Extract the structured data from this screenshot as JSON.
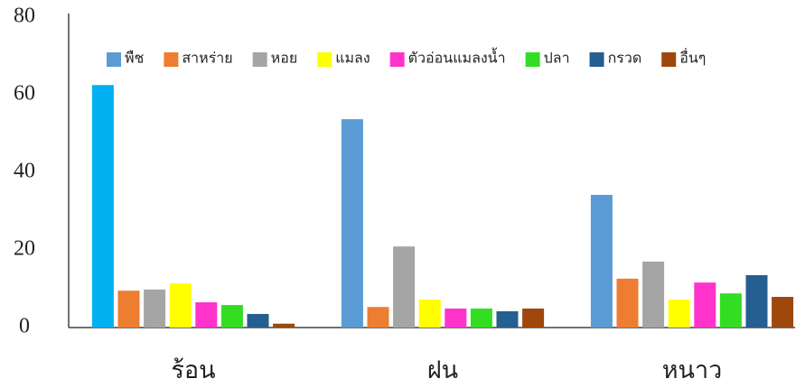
{
  "chart_data": {
    "type": "bar",
    "categories": [
      "ร้อน",
      "ฝน",
      "หนาว"
    ],
    "series": [
      {
        "name": "พืช",
        "color": "#5b9bd5",
        "point_colors": [
          "#00b0f0",
          "#5b9bd5",
          "#5b9bd5"
        ],
        "values": [
          62.5,
          53.7,
          34.2
        ]
      },
      {
        "name": "สาหร่าย",
        "color": "#ed7d31",
        "values": [
          9.5,
          5.3,
          12.6
        ]
      },
      {
        "name": "หอย",
        "color": "#a5a5a5",
        "values": [
          9.8,
          20.9,
          17
        ]
      },
      {
        "name": "แมลง",
        "color": "#ffff00",
        "values": [
          11.4,
          7.2,
          7.2
        ]
      },
      {
        "name": "ตัวอ่อนแมลงน้ำ",
        "color": "#ff33cc",
        "values": [
          6.5,
          4.9,
          11.6
        ]
      },
      {
        "name": "ปลา",
        "color": "#33dd22",
        "values": [
          5.8,
          4.9,
          8.8
        ]
      },
      {
        "name": "กรวด",
        "color": "#255e91",
        "values": [
          3.5,
          4.2,
          13.5
        ]
      },
      {
        "name": "อื่นๆ",
        "color": "#9e480e",
        "values": [
          1,
          4.9,
          7.9
        ]
      }
    ],
    "ylim": [
      0,
      80
    ],
    "yticks": [
      0,
      20,
      40,
      60,
      80
    ],
    "grid": false,
    "legend": "top"
  }
}
